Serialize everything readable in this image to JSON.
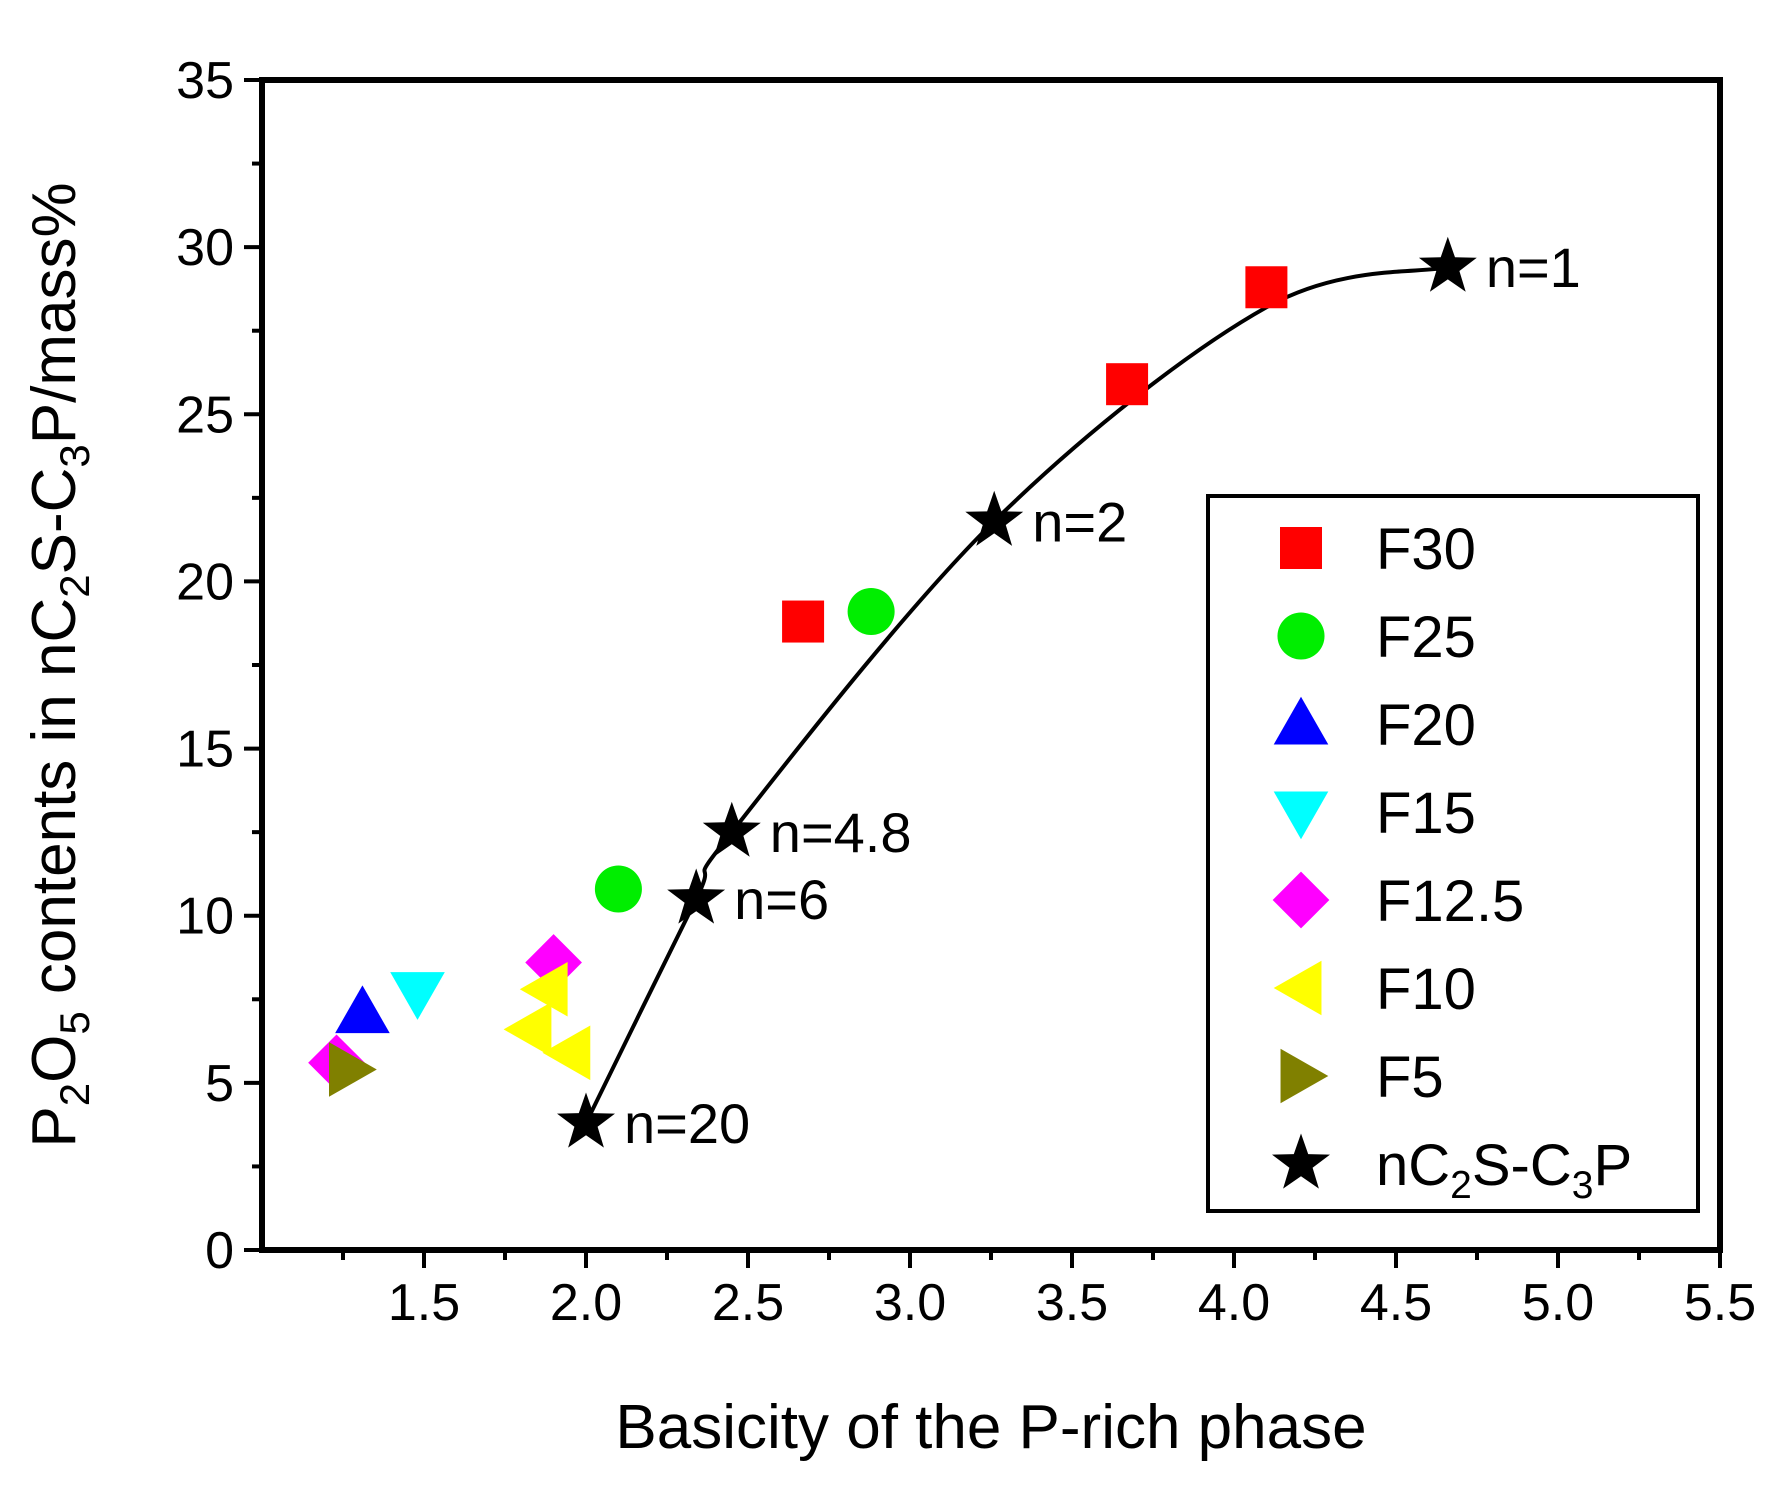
{
  "chart_data": {
    "type": "scatter",
    "xlabel": "Basicity of the P-rich phase",
    "ylabel": {
      "parts": [
        {
          "text": "P",
          "style": "normal"
        },
        {
          "text": "2",
          "style": "sub"
        },
        {
          "text": "O",
          "style": "normal"
        },
        {
          "text": "5",
          "style": "sub"
        },
        {
          "text": " contents in nC",
          "style": "normal"
        },
        {
          "text": "2",
          "style": "sub"
        },
        {
          "text": "S-C",
          "style": "normal"
        },
        {
          "text": "3",
          "style": "sub"
        },
        {
          "text": "P/mass%",
          "style": "normal"
        }
      ]
    },
    "xlim": [
      1.0,
      5.5
    ],
    "ylim": [
      0,
      35
    ],
    "xticks": [
      1.5,
      2.0,
      2.5,
      3.0,
      3.5,
      4.0,
      4.5,
      5.0,
      5.5
    ],
    "xtick_labels": [
      "1.5",
      "2.0",
      "2.5",
      "3.0",
      "3.5",
      "4.0",
      "4.5",
      "5.0",
      "5.5"
    ],
    "yticks": [
      0,
      5,
      10,
      15,
      20,
      25,
      30,
      35
    ],
    "ytick_labels": [
      "0",
      "5",
      "10",
      "15",
      "20",
      "25",
      "30",
      "35"
    ],
    "legend_position": "bottom-right",
    "series": [
      {
        "name": "F30",
        "marker": "square",
        "color": "#ff0000",
        "points": [
          [
            2.67,
            18.8
          ],
          [
            3.67,
            25.9
          ],
          [
            4.1,
            28.8
          ]
        ]
      },
      {
        "name": "F25",
        "marker": "circle",
        "color": "#00ee00",
        "points": [
          [
            2.1,
            10.8
          ],
          [
            2.88,
            19.1
          ]
        ]
      },
      {
        "name": "F20",
        "marker": "triangle-up",
        "color": "#0000ff",
        "points": [
          [
            1.31,
            7.1
          ]
        ]
      },
      {
        "name": "F15",
        "marker": "triangle-down",
        "color": "#00ffff",
        "points": [
          [
            1.48,
            7.7
          ]
        ]
      },
      {
        "name": "F12.5",
        "marker": "diamond",
        "color": "#ff00ff",
        "points": [
          [
            1.23,
            5.6
          ],
          [
            1.9,
            8.6
          ]
        ]
      },
      {
        "name": "F10",
        "marker": "triangle-left",
        "color": "#ffff00",
        "points": [
          [
            1.83,
            6.6
          ],
          [
            1.88,
            7.8
          ],
          [
            1.95,
            5.9
          ]
        ]
      },
      {
        "name": "F5",
        "marker": "triangle-right",
        "color": "#808000",
        "points": [
          [
            1.27,
            5.4
          ]
        ]
      },
      {
        "name": "nC2S-C3P",
        "legend_parts": [
          {
            "text": "nC",
            "style": "normal"
          },
          {
            "text": "2",
            "style": "sub"
          },
          {
            "text": "S-C",
            "style": "normal"
          },
          {
            "text": "3",
            "style": "sub"
          },
          {
            "text": "P",
            "style": "normal"
          }
        ],
        "marker": "star",
        "color": "#000000",
        "points": [
          [
            2.0,
            3.8
          ],
          [
            2.34,
            10.5
          ],
          [
            2.45,
            12.5
          ],
          [
            3.26,
            21.8
          ],
          [
            4.66,
            29.4
          ]
        ]
      }
    ],
    "annotations": [
      {
        "text": "n=1",
        "x": 4.66,
        "y": 29.4
      },
      {
        "text": "n=2",
        "x": 3.26,
        "y": 21.8
      },
      {
        "text": "n=4.8",
        "x": 2.45,
        "y": 12.5
      },
      {
        "text": "n=6",
        "x": 2.34,
        "y": 10.5
      },
      {
        "text": "n=20",
        "x": 2.0,
        "y": 3.8
      }
    ],
    "fit_curve": {
      "color": "#000000",
      "points": [
        [
          2.0,
          3.8
        ],
        [
          2.34,
          10.5
        ],
        [
          2.45,
          12.5
        ],
        [
          3.26,
          21.8
        ],
        [
          4.1,
          28.2
        ],
        [
          4.66,
          29.4
        ]
      ]
    }
  }
}
